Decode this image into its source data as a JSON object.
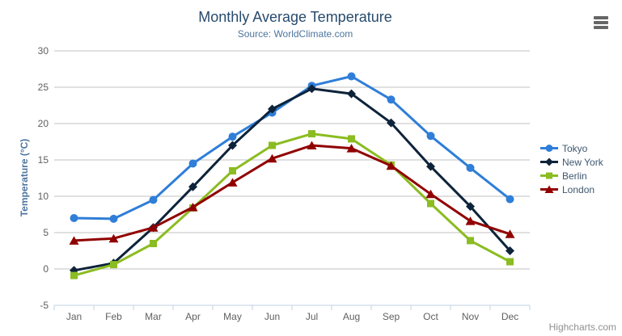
{
  "title": "Monthly Average Temperature",
  "subtitle": "Source: WorldClimate.com",
  "credits": "Highcharts.com",
  "context_menu_icon": "hamburger-icon",
  "colors": {
    "title": "#274b6d",
    "subtitle": "#4d759e",
    "axis_labels": "#606060",
    "y_axis_title": "#4d759e",
    "legend_text": "#3E576F",
    "gridline": "#C0C0C0",
    "axis_line": "#C0D0E0",
    "credits": "#909090"
  },
  "chart_data": {
    "type": "line",
    "title": "Monthly Average Temperature",
    "subtitle": "Source: WorldClimate.com",
    "xlabel": "",
    "ylabel": "Temperature (°C)",
    "categories": [
      "Jan",
      "Feb",
      "Mar",
      "Apr",
      "May",
      "Jun",
      "Jul",
      "Aug",
      "Sep",
      "Oct",
      "Nov",
      "Dec"
    ],
    "ylim": [
      -5,
      30
    ],
    "ytick_step": 5,
    "yticks": [
      -5,
      0,
      5,
      10,
      15,
      20,
      25,
      30
    ],
    "grid": true,
    "legend_position": "right-middle",
    "series": [
      {
        "name": "Tokyo",
        "color": "#2f7ed8",
        "marker": "circle",
        "values": [
          7.0,
          6.9,
          9.5,
          14.5,
          18.2,
          21.5,
          25.2,
          26.5,
          23.3,
          18.3,
          13.9,
          9.6
        ]
      },
      {
        "name": "New York",
        "color": "#0d233a",
        "marker": "diamond",
        "values": [
          -0.2,
          0.8,
          5.7,
          11.3,
          17.0,
          22.0,
          24.8,
          24.1,
          20.1,
          14.1,
          8.6,
          2.5
        ]
      },
      {
        "name": "Berlin",
        "color": "#8bbc21",
        "marker": "square",
        "values": [
          -0.9,
          0.6,
          3.5,
          8.4,
          13.5,
          17.0,
          18.6,
          17.9,
          14.3,
          9.0,
          3.9,
          1.0
        ]
      },
      {
        "name": "London",
        "color": "#910000",
        "marker": "triangle",
        "values": [
          3.9,
          4.2,
          5.7,
          8.5,
          11.9,
          15.2,
          17.0,
          16.6,
          14.2,
          10.3,
          6.6,
          4.8
        ]
      }
    ]
  }
}
